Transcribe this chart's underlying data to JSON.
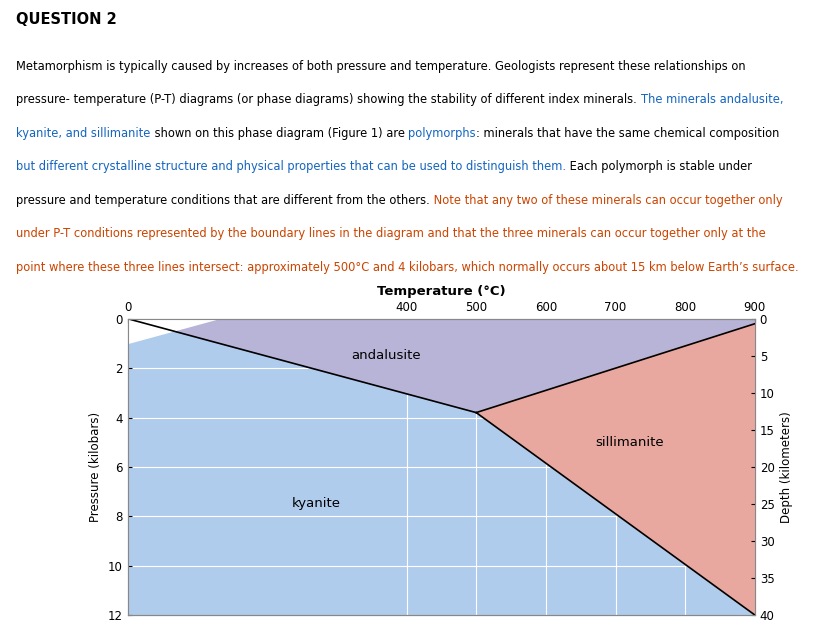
{
  "title": "QUESTION 2",
  "xlabel": "Temperature (°C)",
  "ylabel": "Pressure (kilobars)",
  "ylabel_right": "Depth (kilometers)",
  "xlim": [
    0,
    900
  ],
  "ylim": [
    0,
    12
  ],
  "xticks": [
    0,
    400,
    500,
    600,
    700,
    800,
    900
  ],
  "yticks_left": [
    0,
    2,
    4,
    6,
    8,
    10,
    12
  ],
  "yticks_right": [
    0,
    5,
    10,
    15,
    20,
    25,
    30,
    35,
    40
  ],
  "yticks_right_vals": [
    0,
    1.5,
    3.0,
    4.5,
    6.0,
    7.5,
    9.0,
    10.5,
    12.0
  ],
  "fig_bg": "#fffff0",
  "outer_box_bg": "#eeecd0",
  "kyanite_color": "#b0ccec",
  "andalusite_color": "#b8b4d8",
  "sillimanite_color": "#e8a8a0",
  "white_notch": true,
  "triple_point_x": 500,
  "triple_point_y": 3.8,
  "line_ks_end_y": 12.0,
  "line_as_end_y": 0.2,
  "text_color_black": "#000000",
  "text_color_blue": "#1565c0",
  "text_color_orange": "#cc4400",
  "para_lines": [
    {
      "text": "Metamorphism is typically caused by increases of both pressure and temperature. Geologists represent these relationships on",
      "segments": [
        {
          "t": "Metamorphism is typically caused by increases of both pressure and temperature. Geologists represent these relationships on",
          "c": "black"
        }
      ]
    },
    {
      "text": "pressure- temperature (P-T) diagrams (or phase diagrams) showing the stability of different index minerals. The minerals andalusite,",
      "segments": [
        {
          "t": "pressure- temperature (P-T) diagrams (or phase diagrams) showing the stability of different index minerals. ",
          "c": "black"
        },
        {
          "t": "The minerals andalusite,",
          "c": "blue"
        }
      ]
    },
    {
      "text": "kyanite, and sillimanite shown on this phase diagram (Figure 1) are polymorphs: minerals that have the same chemical composition",
      "segments": [
        {
          "t": "kyanite, and sillimanite shown on this phase diagram (Figure 1) are ",
          "c": "blue"
        },
        {
          "t": "polymorphs",
          "c": "blue"
        },
        {
          "t": ": minerals that have the same chemical composition",
          "c": "blue"
        }
      ]
    },
    {
      "text": "but different crystalline structure and physical properties that can be used to distinguish them. Each polymorph is stable under",
      "segments": [
        {
          "t": "but different crystalline structure and physical properties that can be used to distinguish them. Each polymorph is stable under",
          "c": "blue"
        }
      ]
    },
    {
      "text": "pressure and temperature conditions that are different from the others. ",
      "segments": [
        {
          "t": "pressure and temperature conditions that are different from the others. ",
          "c": "blue"
        }
      ]
    },
    {
      "text": "Note that any two of these minerals can occur together only",
      "segments": [
        {
          "t": "Note that any two of these minerals can occur together only",
          "c": "orange"
        }
      ]
    },
    {
      "text": "under P-T conditions represented by the boundary lines in the diagram and that the three minerals can occur together only at the",
      "segments": [
        {
          "t": "under P-T conditions represented by the boundary lines in the diagram and that the three minerals can occur together only at the",
          "c": "orange"
        }
      ]
    },
    {
      "text": "point where these three lines intersect: approximately 500°C and 4 kilobars, which normally occurs about 15 km below Earth’s surface.",
      "segments": [
        {
          "t": "point where these three lines intersect: approximately 500°C and 4 kilobars, which normally occurs about 15 km below Earth’s surface.",
          "c": "orange"
        }
      ]
    }
  ]
}
